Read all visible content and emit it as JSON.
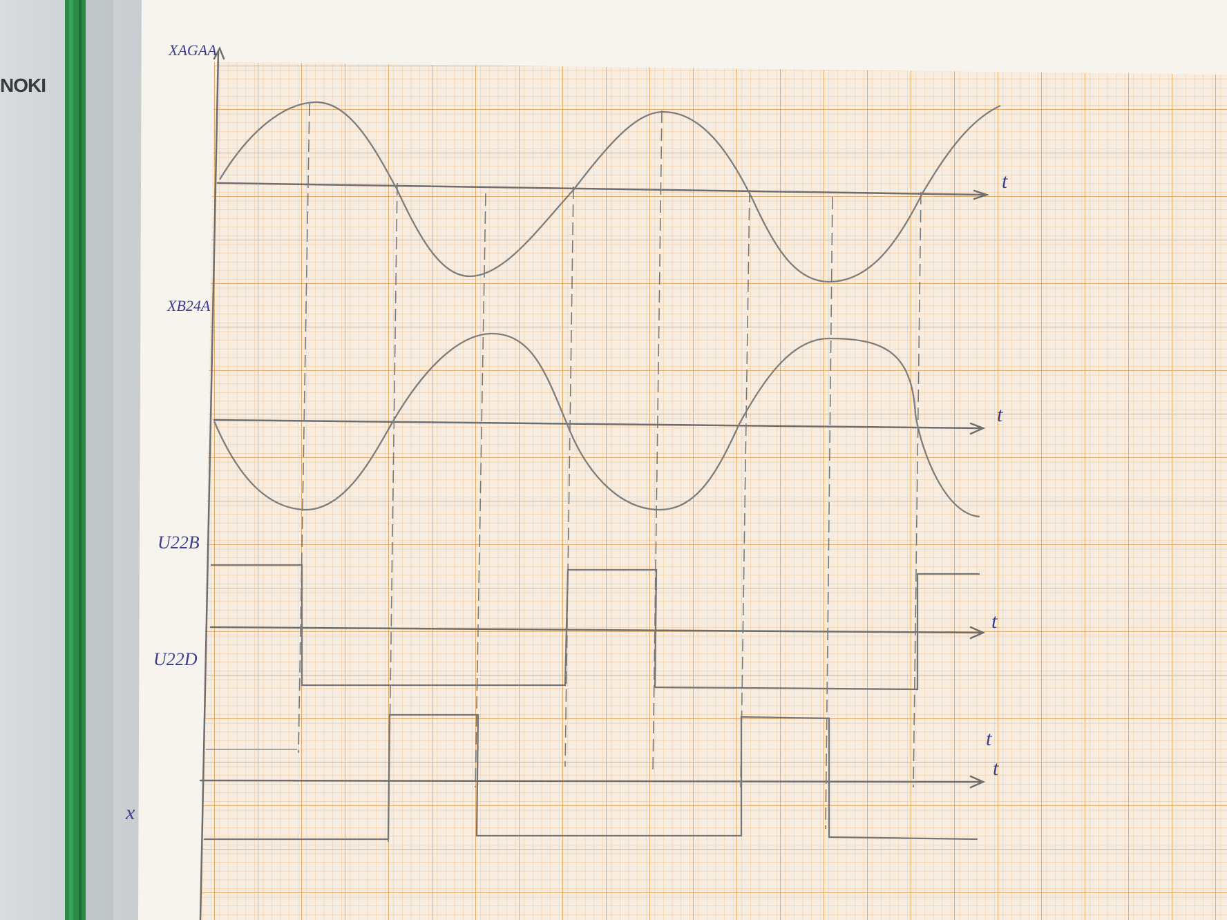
{
  "binder": {
    "brand_text": "NOKI"
  },
  "paper": {
    "grid_color": "#e8a552",
    "paper_color": "#f3ece2",
    "pencil_color": "#6e6e6e",
    "ink_color": "#3b3e8f"
  },
  "axes": [
    {
      "id": "xa",
      "signal_label": "XAGAA",
      "time_label": "t"
    },
    {
      "id": "xb",
      "signal_label": "XB24A",
      "time_label": "t"
    },
    {
      "id": "u22b",
      "signal_label": "U22B",
      "time_label": "t"
    },
    {
      "id": "u22d",
      "signal_label": "U22D",
      "time_label": "t"
    }
  ],
  "extra_labels": {
    "x_label": "x",
    "extra_t": "t"
  }
}
